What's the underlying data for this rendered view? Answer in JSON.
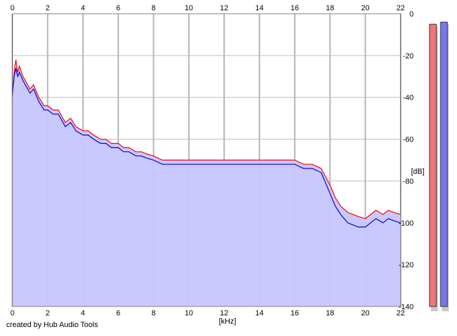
{
  "credit": "created by Hub Audio Tools",
  "chart_data": {
    "type": "line",
    "xlabel": "[kHz]",
    "ylabel": "[dB]",
    "xlim": [
      0,
      22
    ],
    "ylim": [
      -140,
      0
    ],
    "x_ticks": [
      0,
      2,
      4,
      6,
      8,
      10,
      12,
      14,
      16,
      18,
      20,
      22
    ],
    "y_ticks": [
      0,
      -20,
      -40,
      -60,
      -80,
      -100,
      -120,
      -140
    ],
    "y_tick_labels": [
      "0",
      "-20",
      "-40",
      "-60",
      "-80",
      "-100",
      "-120",
      "-140"
    ],
    "grid": true,
    "area_fill_color": "#c6c6ff",
    "series": [
      {
        "color": "#ff0000",
        "x": [
          0,
          0.1,
          0.2,
          0.3,
          0.4,
          0.6,
          0.8,
          1.0,
          1.2,
          1.5,
          1.8,
          2.0,
          2.3,
          2.6,
          3.0,
          3.3,
          3.6,
          4.0,
          4.3,
          4.6,
          5.0,
          5.3,
          5.6,
          6.0,
          6.3,
          6.6,
          7.0,
          7.3,
          7.6,
          8.0,
          8.5,
          9.0,
          9.5,
          10.0,
          10.5,
          11.0,
          11.5,
          12.0,
          12.5,
          13.0,
          13.5,
          14.0,
          14.5,
          15.0,
          15.5,
          16.0,
          16.5,
          17.0,
          17.5,
          18.0,
          18.3,
          18.6,
          19.0,
          19.3,
          19.6,
          20.0,
          20.3,
          20.6,
          21.0,
          21.3,
          21.6,
          22.0
        ],
        "values": [
          -40,
          -28,
          -22,
          -28,
          -25,
          -30,
          -33,
          -36,
          -34,
          -40,
          -44,
          -44,
          -46,
          -46,
          -52,
          -50,
          -54,
          -56,
          -56,
          -58,
          -60,
          -60,
          -62,
          -62,
          -64,
          -64,
          -66,
          -66,
          -67,
          -68,
          -70,
          -70,
          -70,
          -70,
          -70,
          -70,
          -70,
          -70,
          -70,
          -70,
          -70,
          -70,
          -70,
          -70,
          -70,
          -70,
          -72,
          -72,
          -74,
          -82,
          -88,
          -92,
          -95,
          -96,
          -97,
          -98,
          -96,
          -94,
          -96,
          -94,
          -95,
          -96
        ]
      },
      {
        "color": "#0000cc",
        "x": [
          0,
          0.1,
          0.2,
          0.3,
          0.4,
          0.6,
          0.8,
          1.0,
          1.2,
          1.5,
          1.8,
          2.0,
          2.3,
          2.6,
          3.0,
          3.3,
          3.6,
          4.0,
          4.3,
          4.6,
          5.0,
          5.3,
          5.6,
          6.0,
          6.3,
          6.6,
          7.0,
          7.3,
          7.6,
          8.0,
          8.5,
          9.0,
          9.5,
          10.0,
          10.5,
          11.0,
          11.5,
          12.0,
          12.5,
          13.0,
          13.5,
          14.0,
          14.5,
          15.0,
          15.5,
          16.0,
          16.5,
          17.0,
          17.5,
          18.0,
          18.3,
          18.6,
          19.0,
          19.3,
          19.6,
          20.0,
          20.3,
          20.6,
          21.0,
          21.3,
          21.6,
          22.0
        ],
        "values": [
          -38,
          -30,
          -26,
          -30,
          -28,
          -32,
          -35,
          -38,
          -36,
          -42,
          -46,
          -46,
          -48,
          -48,
          -54,
          -52,
          -56,
          -58,
          -58,
          -60,
          -62,
          -62,
          -64,
          -64,
          -66,
          -66,
          -68,
          -68,
          -69,
          -70,
          -72,
          -72,
          -72,
          -72,
          -72,
          -72,
          -72,
          -72,
          -72,
          -72,
          -72,
          -72,
          -72,
          -72,
          -72,
          -72,
          -74,
          -74,
          -76,
          -86,
          -92,
          -96,
          -100,
          -101,
          -102,
          -102,
          -100,
          -98,
          -100,
          -98,
          -99,
          -100
        ]
      }
    ],
    "level_meters": [
      {
        "color": "#ee7777",
        "level_db": -5
      },
      {
        "color": "#7777ee",
        "level_db": -4
      }
    ]
  }
}
